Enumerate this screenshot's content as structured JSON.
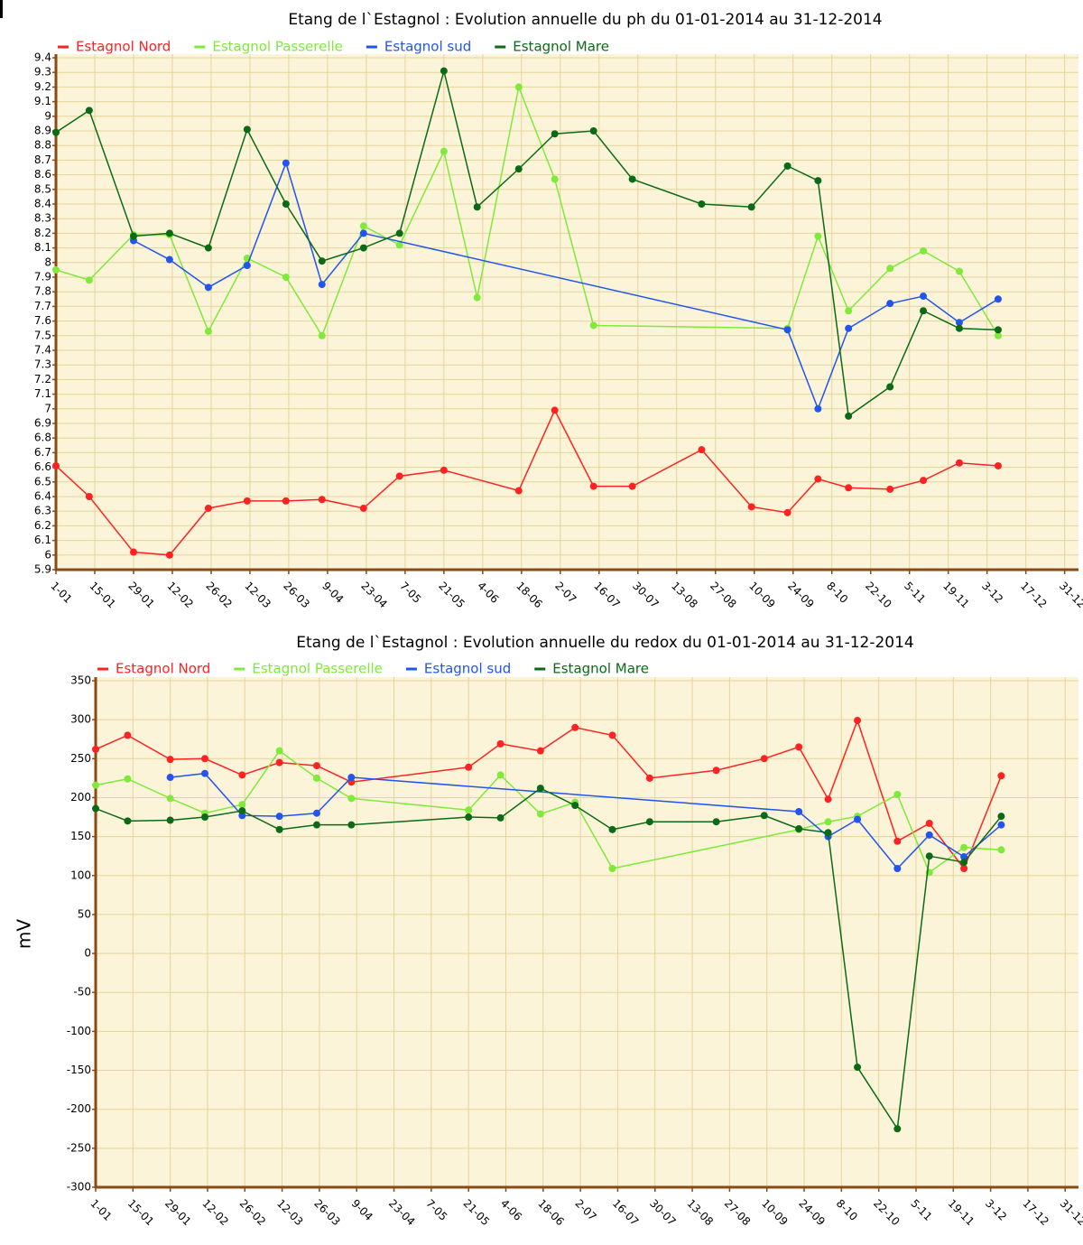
{
  "chart_data": [
    {
      "type": "line",
      "title": "Etang de l`Estagnol : Evolution annuelle du ph du 01-01-2014 au 31-12-2014",
      "xlim": [
        1,
        370
      ],
      "xticks": [
        {
          "value": 1,
          "label": "1-01"
        },
        {
          "value": 15,
          "label": "15-01"
        },
        {
          "value": 29,
          "label": "29-01"
        },
        {
          "value": 43,
          "label": "12-02"
        },
        {
          "value": 57,
          "label": "26-02"
        },
        {
          "value": 71,
          "label": "12-03"
        },
        {
          "value": 85,
          "label": "26-03"
        },
        {
          "value": 99,
          "label": "9-04"
        },
        {
          "value": 113,
          "label": "23-04"
        },
        {
          "value": 127,
          "label": "7-05"
        },
        {
          "value": 141,
          "label": "21-05"
        },
        {
          "value": 155,
          "label": "4-06"
        },
        {
          "value": 169,
          "label": "18-06"
        },
        {
          "value": 183,
          "label": "2-07"
        },
        {
          "value": 197,
          "label": "16-07"
        },
        {
          "value": 211,
          "label": "30-07"
        },
        {
          "value": 225,
          "label": "13-08"
        },
        {
          "value": 239,
          "label": "27-08"
        },
        {
          "value": 253,
          "label": "10-09"
        },
        {
          "value": 267,
          "label": "24-09"
        },
        {
          "value": 281,
          "label": "8-10"
        },
        {
          "value": 295,
          "label": "22-10"
        },
        {
          "value": 309,
          "label": "5-11"
        },
        {
          "value": 323,
          "label": "19-11"
        },
        {
          "value": 337,
          "label": "3-12"
        },
        {
          "value": 351,
          "label": "17-12"
        },
        {
          "value": 365,
          "label": "31-12"
        }
      ],
      "ylim": [
        5.9,
        9.4
      ],
      "yticks": [
        5.9,
        6,
        6.1,
        6.2,
        6.3,
        6.4,
        6.5,
        6.6,
        6.7,
        6.8,
        6.9,
        7,
        7.1,
        7.2,
        7.3,
        7.4,
        7.5,
        7.6,
        7.7,
        7.8,
        7.9,
        8,
        8.1,
        8.2,
        8.3,
        8.4,
        8.5,
        8.6,
        8.7,
        8.8,
        8.9,
        9,
        9.1,
        9.2,
        9.3,
        9.4
      ],
      "grid": true,
      "series": [
        {
          "name": "Estagnol Nord",
          "color": "#ff2222",
          "x": [
            1,
            13,
            29,
            42,
            56,
            70,
            84,
            97,
            112,
            125,
            141,
            168,
            181,
            195,
            209,
            234,
            252,
            265,
            276,
            287,
            302,
            314,
            327,
            341
          ],
          "values": [
            6.61,
            6.4,
            6.02,
            6.0,
            6.32,
            6.37,
            6.37,
            6.38,
            6.32,
            6.54,
            6.58,
            6.44,
            6.99,
            6.47,
            6.47,
            6.72,
            6.33,
            6.29,
            6.52,
            6.46,
            6.45,
            6.51,
            6.63,
            6.61
          ]
        },
        {
          "name": "Estagnol Passerelle",
          "color": "#7fea3a",
          "x": [
            1,
            13,
            29,
            42,
            56,
            70,
            84,
            97,
            112,
            125,
            141,
            153,
            168,
            181,
            195,
            265,
            276,
            287,
            302,
            314,
            327,
            341
          ],
          "values": [
            7.95,
            7.88,
            8.19,
            8.19,
            7.53,
            8.03,
            7.9,
            7.5,
            8.25,
            8.12,
            8.76,
            7.76,
            9.2,
            8.57,
            7.57,
            7.55,
            8.18,
            7.67,
            7.96,
            8.08,
            7.94,
            7.5
          ]
        },
        {
          "name": "Estagnol sud",
          "color": "#2255ee",
          "x": [
            29,
            42,
            56,
            70,
            84,
            97,
            112,
            265,
            276,
            287,
            302,
            314,
            327,
            341
          ],
          "values": [
            8.15,
            8.02,
            7.83,
            7.98,
            8.68,
            7.85,
            8.2,
            7.54,
            7.0,
            7.55,
            7.72,
            7.77,
            7.59,
            7.75
          ]
        },
        {
          "name": "Estagnol Mare",
          "color": "#0b6a16",
          "x": [
            1,
            13,
            29,
            42,
            56,
            70,
            84,
            97,
            112,
            125,
            141,
            153,
            168,
            181,
            195,
            209,
            234,
            252,
            265,
            276,
            287,
            302,
            314,
            327,
            341
          ],
          "values": [
            8.89,
            9.04,
            8.18,
            8.2,
            8.1,
            8.91,
            8.4,
            8.01,
            8.1,
            8.2,
            9.31,
            8.38,
            8.64,
            8.88,
            8.9,
            8.57,
            8.4,
            8.38,
            8.66,
            8.56,
            6.95,
            7.15,
            7.67,
            7.55,
            7.54
          ]
        }
      ]
    },
    {
      "type": "line",
      "title": "Etang de l`Estagnol : Evolution annuelle du redox du 01-01-2014 au 31-12-2014",
      "y_label": "mV",
      "xlim": [
        1,
        370
      ],
      "xticks": [
        {
          "value": 1,
          "label": "1-01"
        },
        {
          "value": 15,
          "label": "15-01"
        },
        {
          "value": 29,
          "label": "29-01"
        },
        {
          "value": 43,
          "label": "12-02"
        },
        {
          "value": 57,
          "label": "26-02"
        },
        {
          "value": 71,
          "label": "12-03"
        },
        {
          "value": 85,
          "label": "26-03"
        },
        {
          "value": 99,
          "label": "9-04"
        },
        {
          "value": 113,
          "label": "23-04"
        },
        {
          "value": 127,
          "label": "7-05"
        },
        {
          "value": 141,
          "label": "21-05"
        },
        {
          "value": 155,
          "label": "4-06"
        },
        {
          "value": 169,
          "label": "18-06"
        },
        {
          "value": 183,
          "label": "2-07"
        },
        {
          "value": 197,
          "label": "16-07"
        },
        {
          "value": 211,
          "label": "30-07"
        },
        {
          "value": 225,
          "label": "13-08"
        },
        {
          "value": 239,
          "label": "27-08"
        },
        {
          "value": 253,
          "label": "10-09"
        },
        {
          "value": 267,
          "label": "24-09"
        },
        {
          "value": 281,
          "label": "8-10"
        },
        {
          "value": 295,
          "label": "22-10"
        },
        {
          "value": 309,
          "label": "5-11"
        },
        {
          "value": 323,
          "label": "19-11"
        },
        {
          "value": 337,
          "label": "3-12"
        },
        {
          "value": 351,
          "label": "17-12"
        },
        {
          "value": 365,
          "label": "31-12"
        }
      ],
      "ylim": [
        -300,
        350
      ],
      "yticks": [
        -300,
        -250,
        -200,
        -150,
        -100,
        -50,
        0,
        50,
        100,
        150,
        200,
        250,
        300,
        350
      ],
      "grid": true,
      "series": [
        {
          "name": "Estagnol Nord",
          "color": "#ff2222",
          "x": [
            1,
            13,
            29,
            42,
            56,
            70,
            84,
            97,
            141,
            153,
            168,
            181,
            195,
            209,
            234,
            252,
            265,
            276,
            287,
            302,
            314,
            327,
            341
          ],
          "values": [
            262,
            280,
            249,
            250,
            229,
            245,
            241,
            220,
            239,
            269,
            260,
            290,
            280,
            225,
            235,
            250,
            265,
            198,
            299,
            144,
            167,
            109,
            228
          ]
        },
        {
          "name": "Estagnol Passerelle",
          "color": "#7fea3a",
          "x": [
            1,
            13,
            29,
            42,
            56,
            70,
            84,
            97,
            141,
            153,
            168,
            181,
            195,
            265,
            276,
            287,
            302,
            314,
            327,
            341
          ],
          "values": [
            216,
            224,
            199,
            180,
            191,
            260,
            225,
            199,
            184,
            229,
            179,
            194,
            109,
            159,
            169,
            176,
            204,
            104,
            136,
            133
          ]
        },
        {
          "name": "Estagnol sud",
          "color": "#2255ee",
          "x": [
            29,
            42,
            56,
            70,
            84,
            97,
            265,
            276,
            287,
            302,
            314,
            327,
            341
          ],
          "values": [
            226,
            231,
            177,
            176,
            180,
            226,
            182,
            150,
            172,
            109,
            152,
            124,
            165
          ]
        },
        {
          "name": "Estagnol Mare",
          "color": "#0b6a16",
          "x": [
            1,
            13,
            29,
            42,
            56,
            70,
            84,
            97,
            141,
            153,
            168,
            181,
            195,
            209,
            234,
            252,
            265,
            276,
            287,
            302,
            314,
            327,
            341
          ],
          "values": [
            186,
            170,
            171,
            175,
            183,
            159,
            165,
            165,
            175,
            174,
            212,
            190,
            159,
            169,
            169,
            177,
            160,
            155,
            -146,
            -225,
            125,
            117,
            176
          ]
        }
      ]
    }
  ]
}
